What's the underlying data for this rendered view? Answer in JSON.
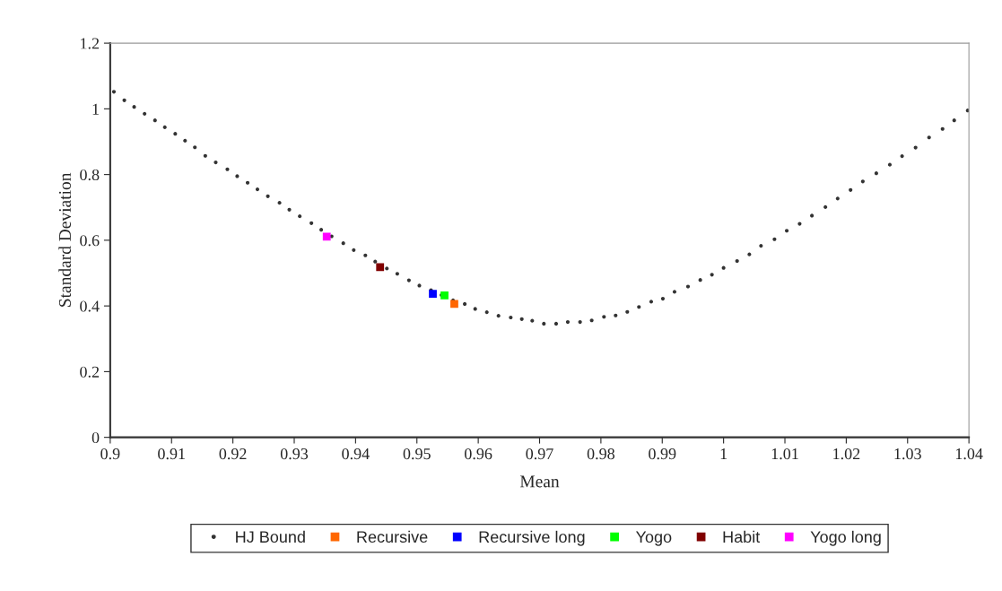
{
  "chart_data": {
    "type": "scatter",
    "xlabel": "Mean",
    "ylabel": "Standard Deviation",
    "xlim": [
      0.9,
      1.04
    ],
    "xticks": [
      0.9,
      0.91,
      0.92,
      0.93,
      0.94,
      0.95,
      0.96,
      0.97,
      0.98,
      0.99,
      1,
      1.01,
      1.02,
      1.03,
      1.04
    ],
    "ylim": [
      0,
      1.2
    ],
    "yticks": [
      0,
      0.2,
      0.4,
      0.6,
      0.8,
      1,
      1.2
    ],
    "grid": false,
    "legend": "bottom",
    "series": [
      {
        "name": "HJ Bound",
        "color": "#333333",
        "marker": "circle",
        "x": [
          0.9006,
          0.9023,
          0.9039,
          0.9056,
          0.9073,
          0.9089,
          0.9106,
          0.9122,
          0.9138,
          0.9155,
          0.9172,
          0.9191,
          0.9207,
          0.9224,
          0.924,
          0.9257,
          0.9276,
          0.9292,
          0.9309,
          0.9328,
          0.9344,
          0.9361,
          0.938,
          0.9397,
          0.9416,
          0.9432,
          0.9451,
          0.9468,
          0.9487,
          0.9504,
          0.9523,
          0.954,
          0.9559,
          0.9578,
          0.9595,
          0.9614,
          0.9633,
          0.9653,
          0.9671,
          0.9688,
          0.9707,
          0.9727,
          0.9746,
          0.9766,
          0.9785,
          0.9805,
          0.9824,
          0.9843,
          0.9862,
          0.9882,
          0.9901,
          0.992,
          0.9942,
          0.9962,
          0.9981,
          1.0,
          1.0022,
          1.0042,
          1.0061,
          1.0083,
          1.0103,
          1.0124,
          1.0144,
          1.0166,
          1.0186,
          1.0207,
          1.0227,
          1.0249,
          1.0271,
          1.0291,
          1.0313,
          1.0335,
          1.0357,
          1.0376,
          1.0398
        ],
        "values": [
          1.052,
          1.026,
          1.006,
          0.985,
          0.965,
          0.944,
          0.924,
          0.903,
          0.883,
          0.857,
          0.837,
          0.816,
          0.795,
          0.775,
          0.755,
          0.734,
          0.714,
          0.693,
          0.673,
          0.652,
          0.632,
          0.612,
          0.591,
          0.57,
          0.554,
          0.535,
          0.514,
          0.498,
          0.478,
          0.462,
          0.448,
          0.433,
          0.417,
          0.406,
          0.391,
          0.381,
          0.37,
          0.365,
          0.36,
          0.355,
          0.346,
          0.346,
          0.351,
          0.351,
          0.356,
          0.367,
          0.371,
          0.382,
          0.397,
          0.413,
          0.422,
          0.443,
          0.459,
          0.479,
          0.495,
          0.516,
          0.537,
          0.557,
          0.583,
          0.603,
          0.629,
          0.65,
          0.675,
          0.701,
          0.727,
          0.753,
          0.779,
          0.804,
          0.83,
          0.856,
          0.882,
          0.913,
          0.939,
          0.965,
          0.995
        ]
      },
      {
        "name": "Recursive",
        "color": "#ff6600",
        "marker": "square",
        "x": [
          0.9561
        ],
        "values": [
          0.406
        ]
      },
      {
        "name": "Recursive long",
        "color": "#0000ff",
        "marker": "square",
        "x": [
          0.9526
        ],
        "values": [
          0.437
        ]
      },
      {
        "name": "Yogo",
        "color": "#00ff00",
        "marker": "square",
        "x": [
          0.9545
        ],
        "values": [
          0.432
        ]
      },
      {
        "name": "Habit",
        "color": "#800000",
        "marker": "square",
        "x": [
          0.944
        ],
        "values": [
          0.518
        ]
      },
      {
        "name": "Yogo long",
        "color": "#ff00ff",
        "marker": "square",
        "x": [
          0.9353
        ],
        "values": [
          0.611
        ]
      }
    ]
  }
}
